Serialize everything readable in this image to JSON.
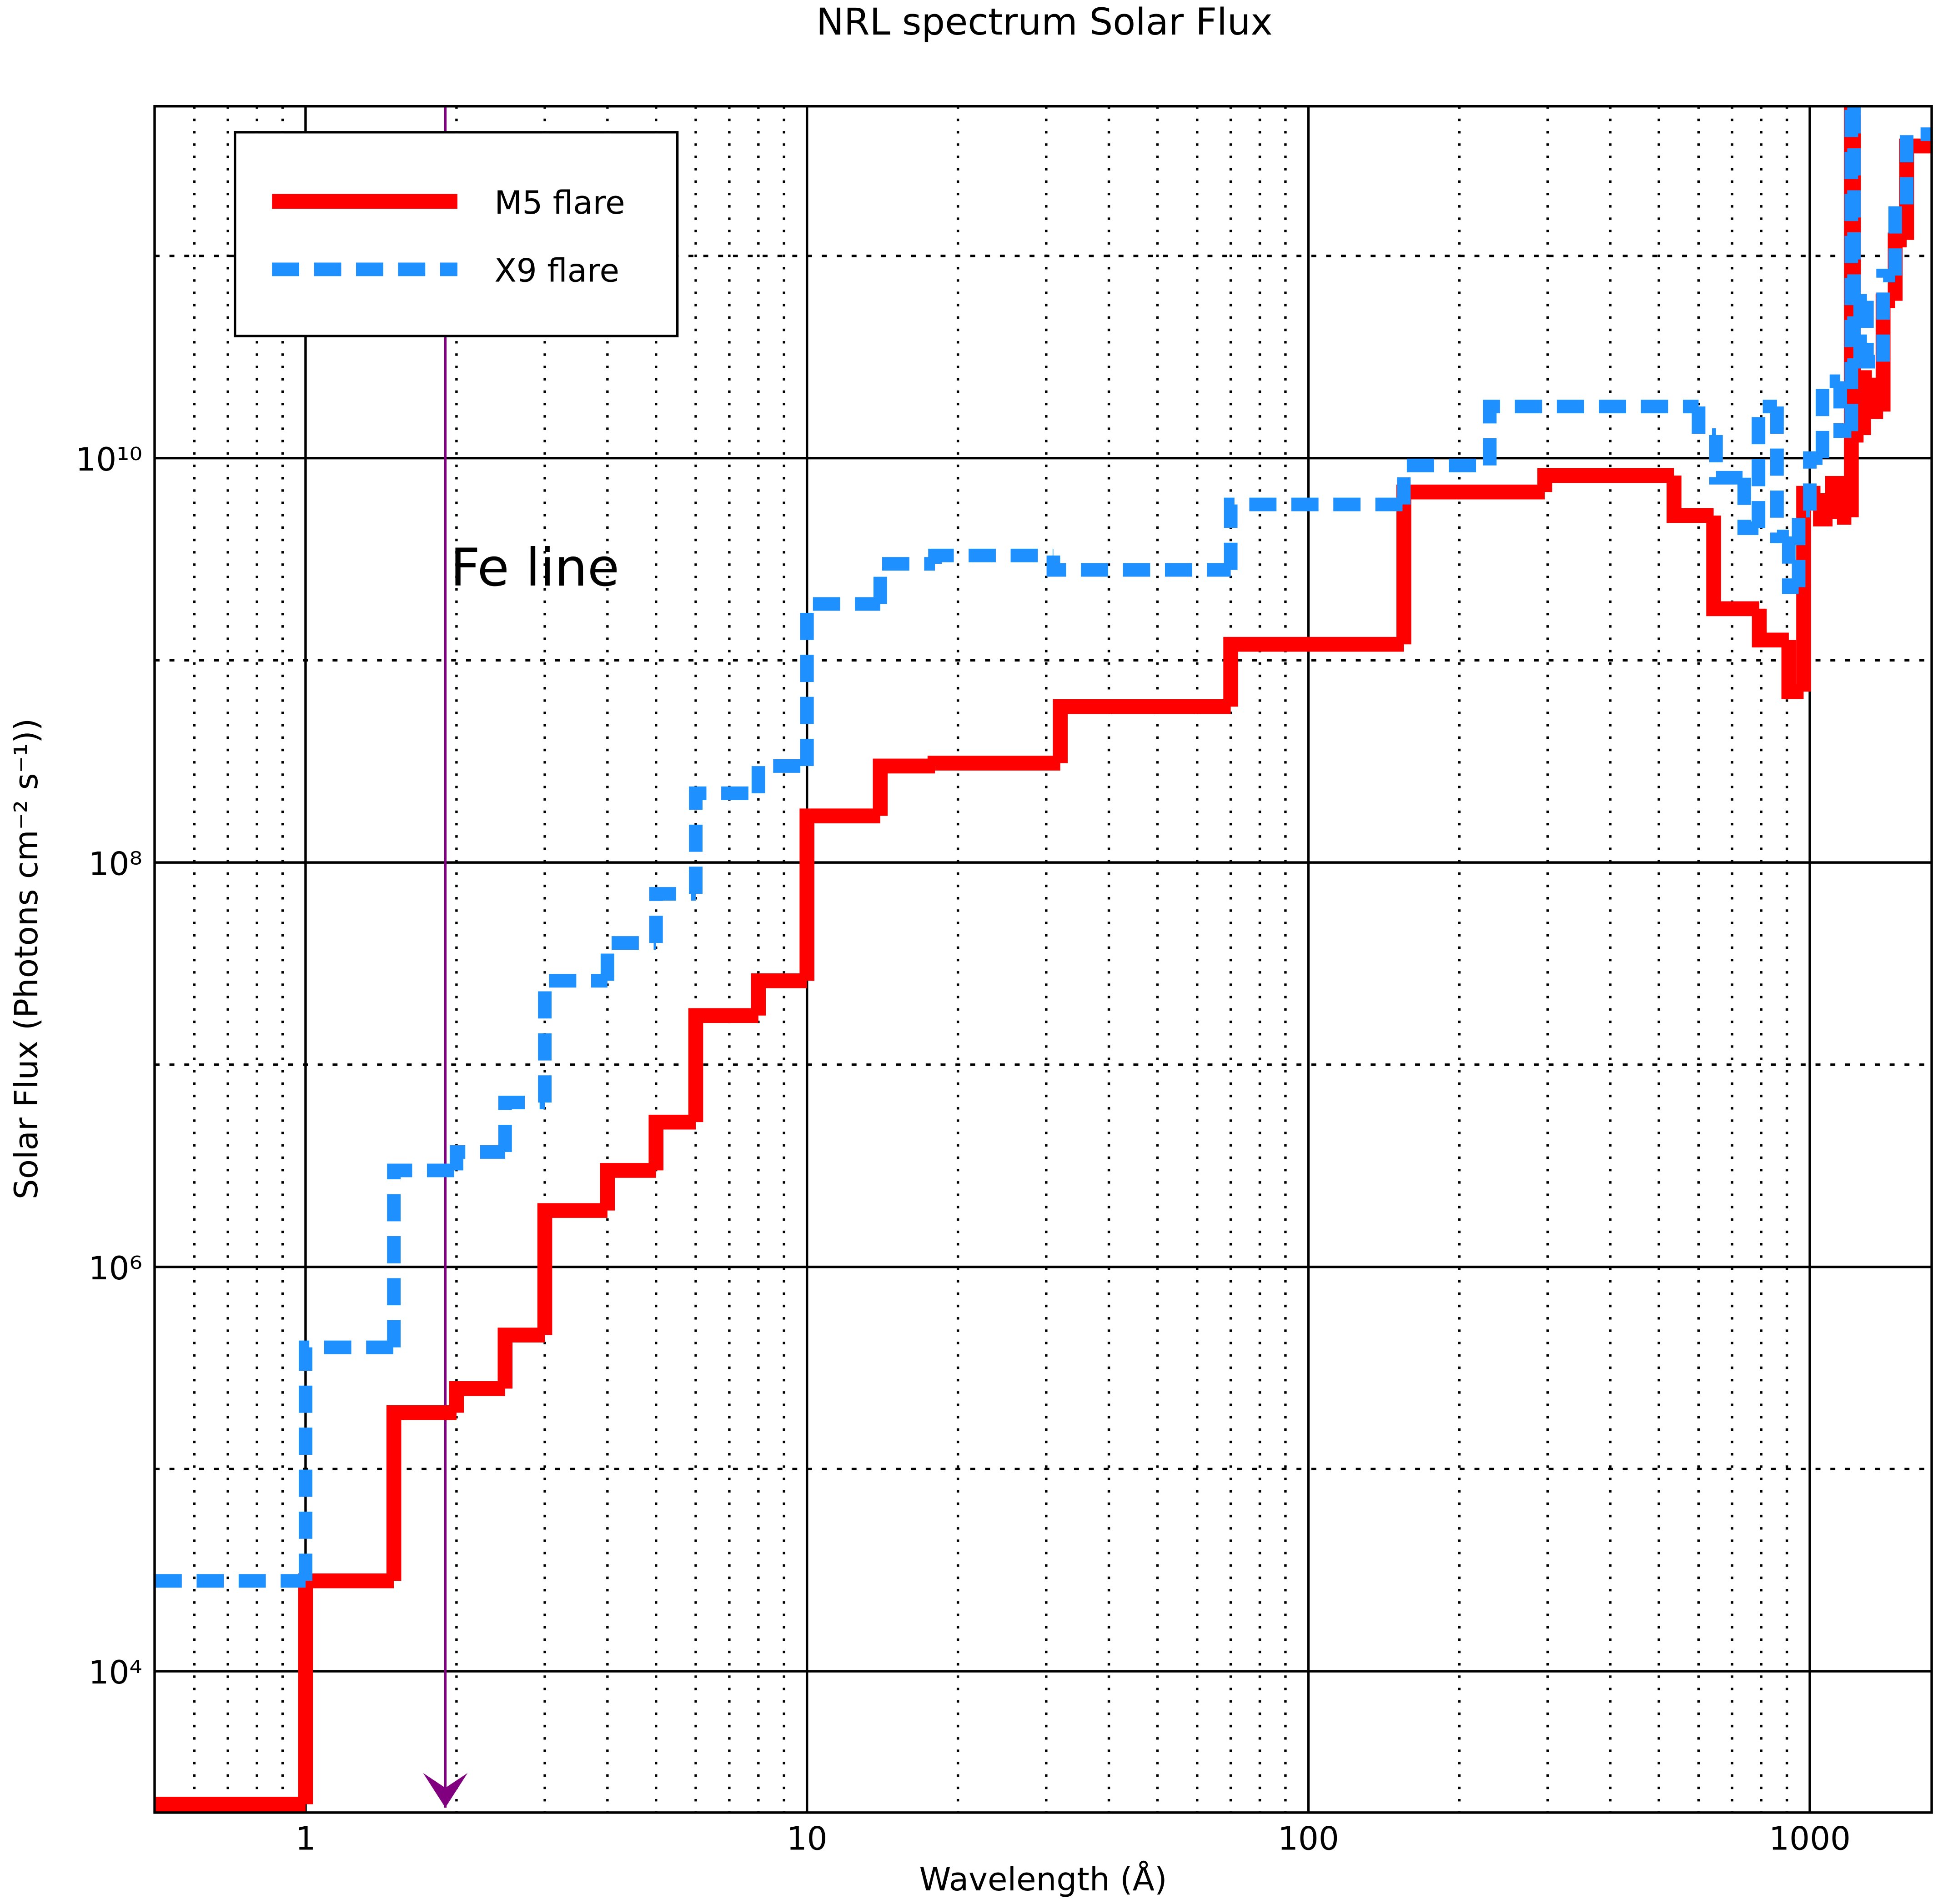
{
  "chart_data": {
    "type": "step",
    "title": "NRL spectrum Solar Flux",
    "x_label": "Wavelength (Å)",
    "y_label": "Solar Flux (Photons cm⁻² s⁻¹))",
    "xscale": "log",
    "yscale": "log",
    "xlim": [
      0.5,
      1750
    ],
    "ylim": [
      2000,
      550000000000
    ],
    "xticks": [
      1,
      10,
      100,
      1000
    ],
    "xminorticks": [
      0.6,
      0.7,
      0.8,
      0.9,
      2,
      3,
      4,
      5,
      6,
      7,
      8,
      9,
      20,
      30,
      40,
      50,
      60,
      70,
      80,
      90,
      200,
      300,
      400,
      500,
      600,
      700,
      800,
      900
    ],
    "yticks": [
      {
        "value": 10000,
        "label": "10⁴"
      },
      {
        "value": 1000000,
        "label": "10⁶"
      },
      {
        "value": 100000000,
        "label": "10⁸"
      },
      {
        "value": 10000000000,
        "label": "10¹⁰"
      }
    ],
    "yminorticks": [
      100000,
      10000000,
      1000000000,
      100000000000
    ],
    "grid": true,
    "legend": "upper left",
    "annotation": {
      "text": "Fe line",
      "x": 1.9,
      "color": "#800080"
    },
    "series": [
      {
        "name": "M5 flare",
        "color": "#ff0000",
        "style": "solid",
        "x": [
          0.5,
          1,
          1.5,
          2,
          2.5,
          3,
          4,
          5,
          6,
          8,
          10,
          14,
          18,
          32,
          70,
          155,
          296,
          536,
          643,
          793,
          908,
          972,
          1050,
          1110,
          1172,
          1210,
          1222,
          1280,
          1330,
          1400,
          1480,
          1560
        ],
        "values": [
          2200,
          28000,
          190000,
          250000,
          460000,
          1900000,
          3000000,
          5200000,
          17500000,
          26000000,
          170000000,
          300000000,
          310000000,
          590000000,
          1200000000,
          6800000000,
          8200000000,
          5200000000,
          1800000000,
          1260000000,
          700000000,
          6700000000,
          5000000000,
          7500000000,
          5100000000,
          500000000000,
          13000000000,
          25000000000,
          17000000000,
          60000000000,
          120000000000,
          350000000000
        ]
      },
      {
        "name": "X9 flare",
        "color": "#1e90ff",
        "style": "dashed",
        "x": [
          0.5,
          1,
          1.5,
          2,
          2.5,
          3,
          4,
          5,
          6,
          8,
          10,
          14,
          18,
          31,
          70,
          155,
          230,
          600,
          650,
          740,
          790,
          860,
          908,
          950,
          1000,
          1060,
          1150,
          1210,
          1225,
          1260,
          1300,
          1400,
          1480,
          1560
        ],
        "values": [
          28000,
          400000,
          3000000,
          3700000,
          6500000,
          26000000,
          40000000,
          70000000,
          220000000,
          300000000,
          1900000000,
          3000000000,
          3300000000,
          2800000000,
          5900000000,
          9200000000,
          18000000000,
          13000000000,
          8000000000,
          4500000000,
          18000000000,
          4100000000,
          2300000000,
          5500000000,
          10000000000,
          24000000000,
          13600000000,
          550000000000,
          30000000000,
          60000000000,
          30000000000,
          80000000000,
          180000000000,
          400000000000
        ]
      }
    ]
  }
}
